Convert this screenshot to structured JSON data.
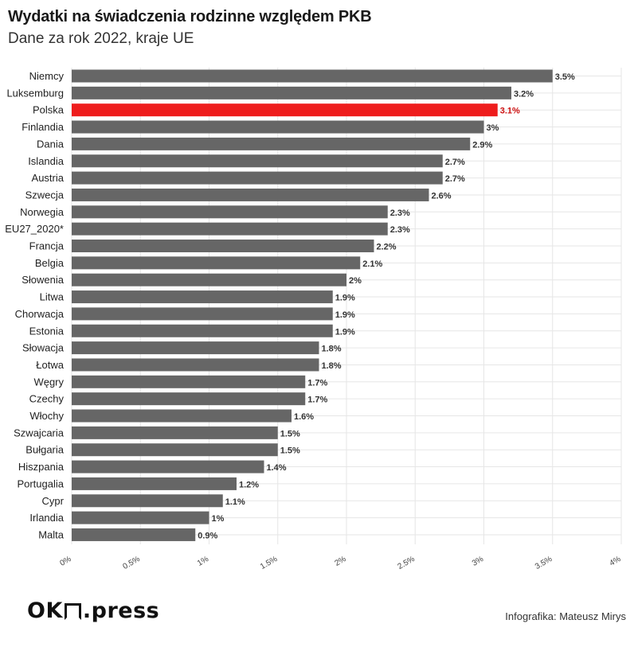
{
  "header": {
    "title": "Wydatki na świadczenia rodzinne względem PKB",
    "subtitle": "Dane za rok 2022, kraje UE"
  },
  "footer": {
    "logo_prefix": "OK",
    "logo_suffix": ".press",
    "credit": "Infografika: Mateusz Mirys"
  },
  "colors": {
    "bar": "#666666",
    "highlight": "#ee1c1c",
    "label": "#333333",
    "highlight_label": "#cc1111",
    "grid": "#e6e6e6"
  },
  "chart_data": {
    "type": "bar",
    "orientation": "horizontal",
    "title": "Wydatki na świadczenia rodzinne względem PKB",
    "subtitle": "Dane za rok 2022, kraje UE",
    "categories": [
      "Niemcy",
      "Luksemburg",
      "Polska",
      "Finlandia",
      "Dania",
      "Islandia",
      "Austria",
      "Szwecja",
      "Norwegia",
      "EU27_2020*",
      "Francja",
      "Belgia",
      "Słowenia",
      "Litwa",
      "Chorwacja",
      "Estonia",
      "Słowacja",
      "Łotwa",
      "Węgry",
      "Czechy",
      "Włochy",
      "Szwajcaria",
      "Bułgaria",
      "Hiszpania",
      "Portugalia",
      "Cypr",
      "Irlandia",
      "Malta"
    ],
    "values": [
      3.5,
      3.2,
      3.1,
      3,
      2.9,
      2.7,
      2.7,
      2.6,
      2.3,
      2.3,
      2.2,
      2.1,
      2,
      1.9,
      1.9,
      1.9,
      1.8,
      1.8,
      1.7,
      1.7,
      1.6,
      1.5,
      1.5,
      1.4,
      1.2,
      1.1,
      1,
      0.9
    ],
    "value_labels": [
      "3.5%",
      "3.2%",
      "3.1%",
      "3%",
      "2.9%",
      "2.7%",
      "2.7%",
      "2.6%",
      "2.3%",
      "2.3%",
      "2.2%",
      "2.1%",
      "2%",
      "1.9%",
      "1.9%",
      "1.9%",
      "1.8%",
      "1.8%",
      "1.7%",
      "1.7%",
      "1.6%",
      "1.5%",
      "1.5%",
      "1.4%",
      "1.2%",
      "1.1%",
      "1%",
      "0.9%"
    ],
    "highlight": "Polska",
    "xlim": [
      0,
      4
    ],
    "xticks": [
      0,
      0.5,
      1,
      1.5,
      2,
      2.5,
      3,
      3.5,
      4
    ],
    "xtick_labels": [
      "0%",
      "0.5%",
      "1%",
      "1.5%",
      "2%",
      "2.5%",
      "3%",
      "3.5%",
      "4%"
    ],
    "grid": true
  }
}
